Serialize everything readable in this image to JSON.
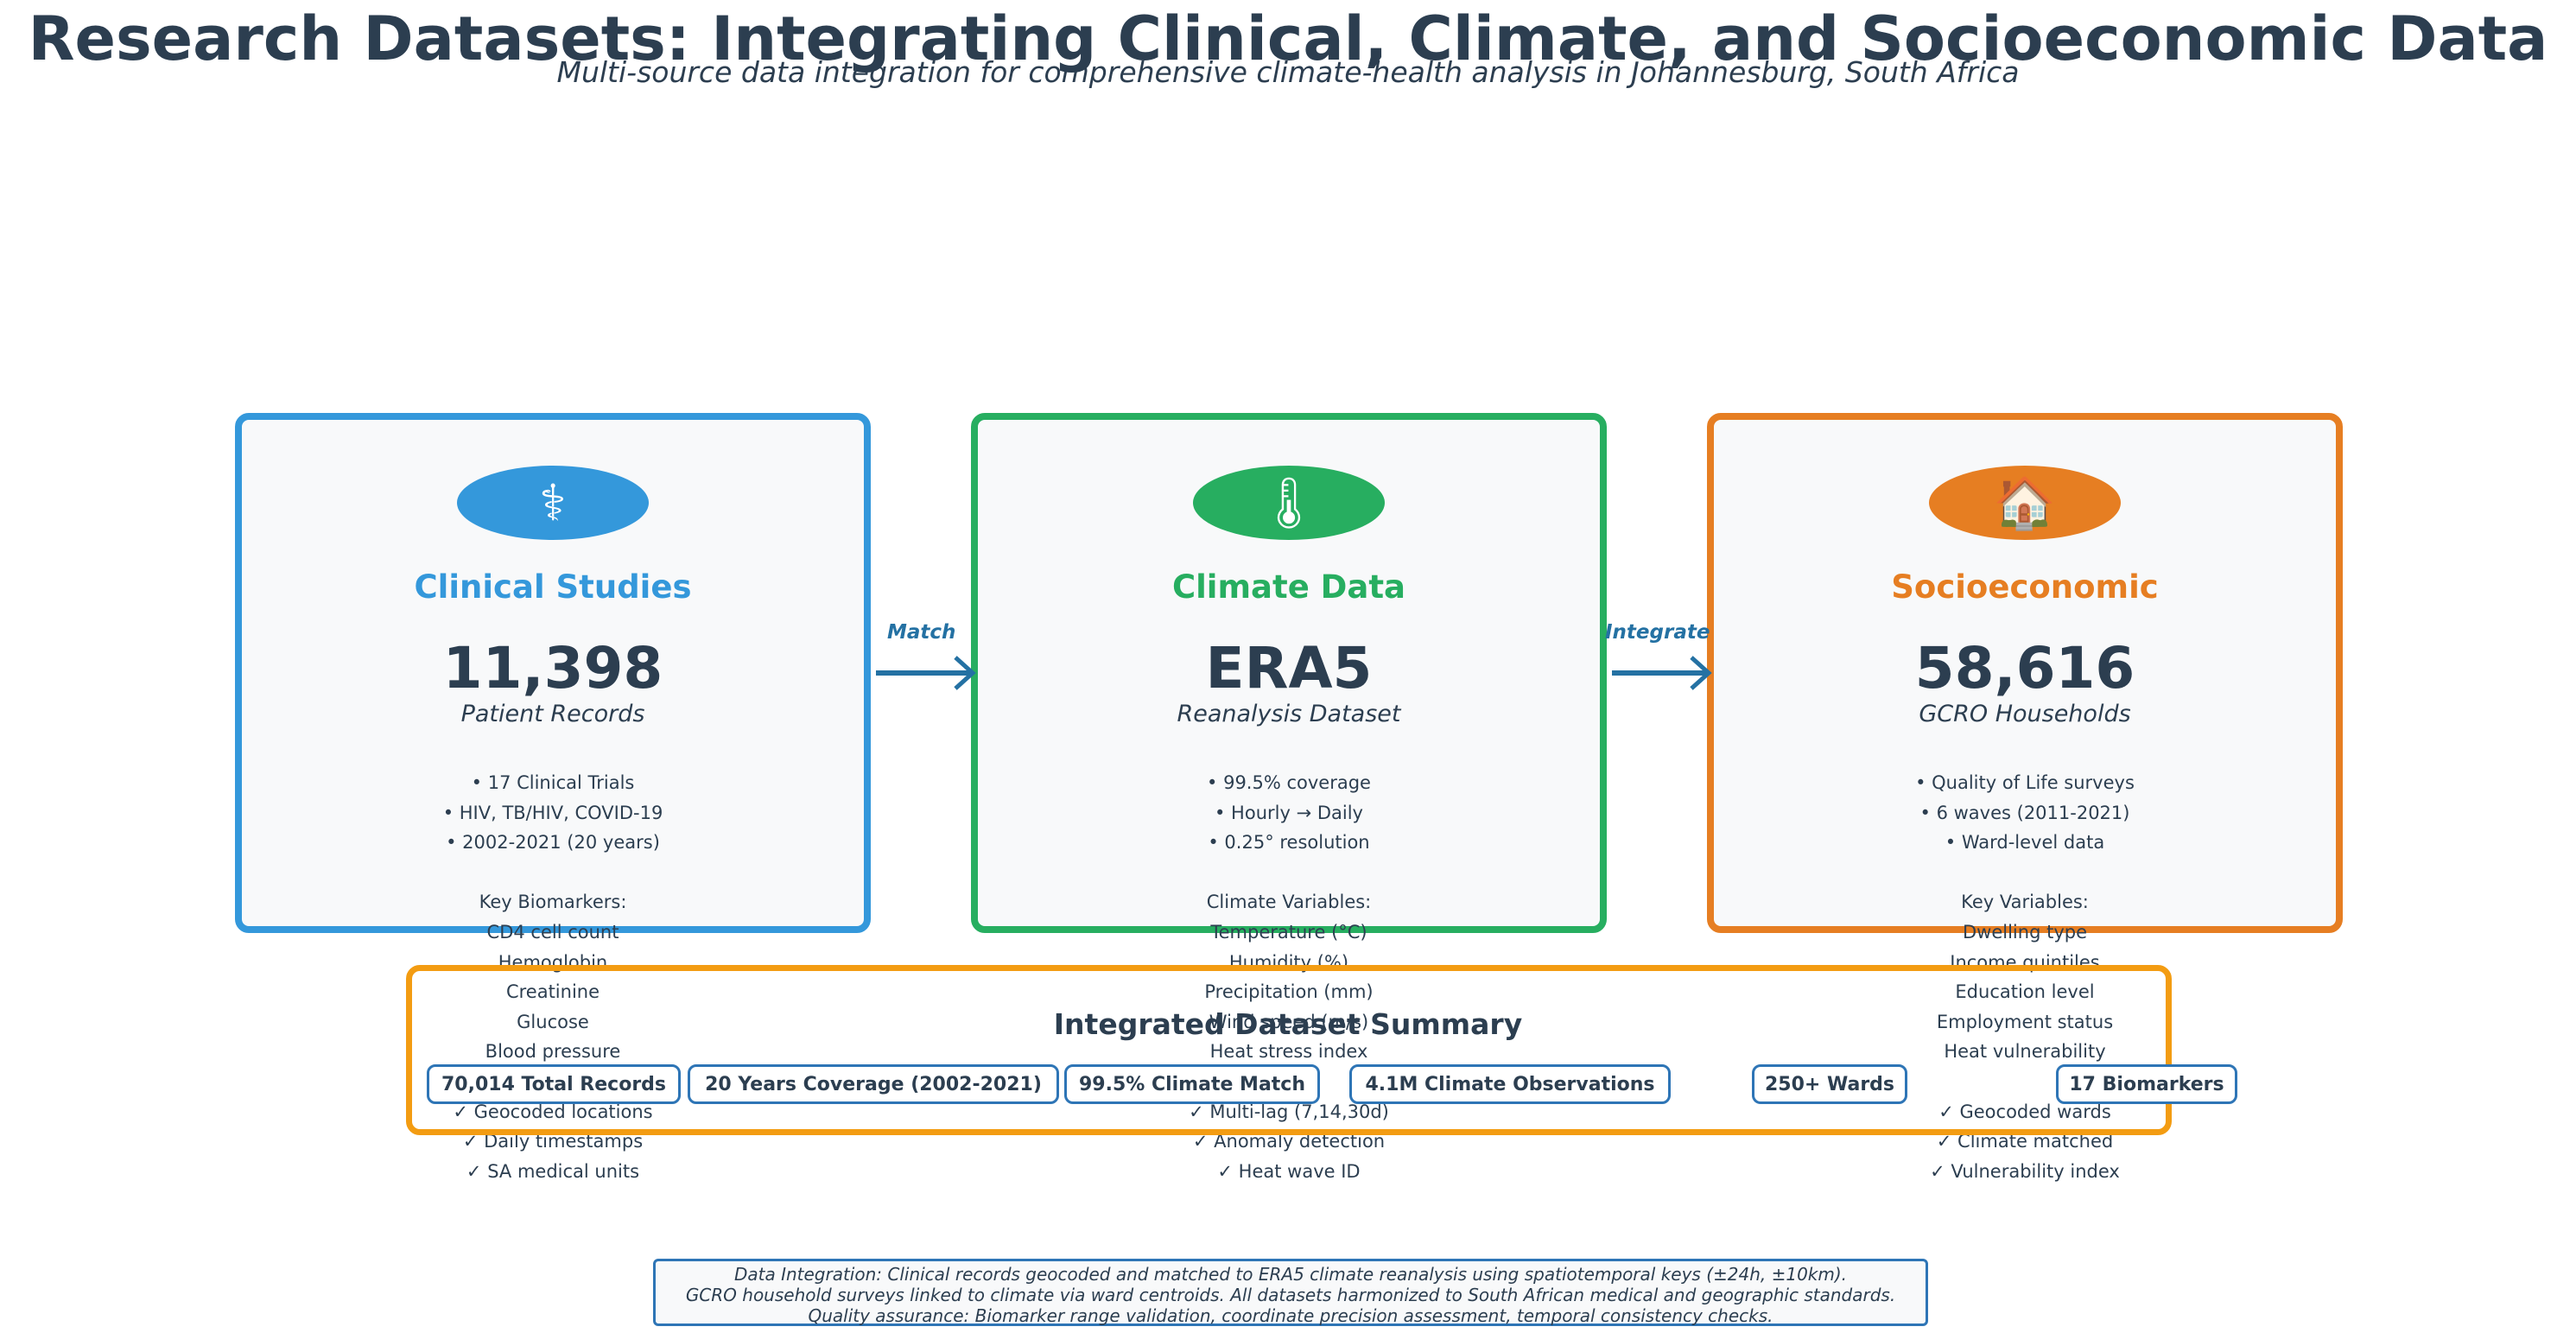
{
  "title": "Research Datasets: Integrating Clinical, Climate, and Socioeconomic Data",
  "subtitle": "Multi-source data integration for comprehensive climate-health analysis in Johannesburg, South Africa",
  "colors": {
    "clinical": "#3498db",
    "climate": "#27ae60",
    "socioeconomic": "#e67e22",
    "summary_border": "#f39c12",
    "arrow": "#2471a3",
    "text": "#2c3e50"
  },
  "cards": [
    {
      "icon": "medical-caduceus-icon",
      "icon_glyph": "⚕",
      "title": "Clinical Studies",
      "value": "11,398",
      "label": "Patient Records",
      "lines": [
        "• 17 Clinical Trials",
        "• HIV, TB/HIV, COVID-19",
        "• 2002-2021 (20 years)",
        "",
        "Key Biomarkers:",
        "CD4 cell count",
        "Hemoglobin",
        "Creatinine",
        "Glucose",
        "Blood pressure",
        "",
        "✓ Geocoded locations",
        "✓ Daily timestamps",
        "✓ SA medical units"
      ]
    },
    {
      "icon": "thermometer-icon",
      "icon_glyph": "🌡",
      "title": "Climate Data",
      "value": "ERA5",
      "label": "Reanalysis Dataset",
      "lines": [
        "• 99.5% coverage",
        "• Hourly → Daily",
        "• 0.25° resolution",
        "",
        "Climate Variables:",
        "Temperature (°C)",
        "Humidity (%)",
        "Precipitation (mm)",
        "Wind speed (m/s)",
        "Heat stress index",
        "",
        "✓ Multi-lag (7,14,30d)",
        "✓ Anomaly detection",
        "✓ Heat wave ID"
      ]
    },
    {
      "icon": "house-icon",
      "icon_glyph": "🏠",
      "title": "Socioeconomic",
      "value": "58,616",
      "label": "GCRO Households",
      "lines": [
        "• Quality of Life surveys",
        "• 6 waves (2011-2021)",
        "• Ward-level data",
        "",
        "Key Variables:",
        "Dwelling type",
        "Income quintiles",
        "Education level",
        "Employment status",
        "Heat vulnerability",
        "",
        "✓ Geocoded wards",
        "✓ Climate matched",
        "✓ Vulnerability index"
      ]
    }
  ],
  "arrows": [
    "Match",
    "Integrate"
  ],
  "summary": {
    "title": "Integrated Dataset Summary",
    "items": [
      "70,014 Total Records",
      "20 Years Coverage (2002-2021)",
      "99.5% Climate Match",
      "4.1M Climate Observations",
      "250+ Wards",
      "17 Biomarkers"
    ]
  },
  "note": [
    "Data Integration: Clinical records geocoded and matched to ERA5 climate reanalysis using spatiotemporal keys (±24h, ±10km).",
    "GCRO household surveys linked to climate via ward centroids. All datasets harmonized to South African medical and geographic standards.",
    "Quality assurance: Biomarker range validation, coordinate precision assessment, temporal consistency checks."
  ]
}
